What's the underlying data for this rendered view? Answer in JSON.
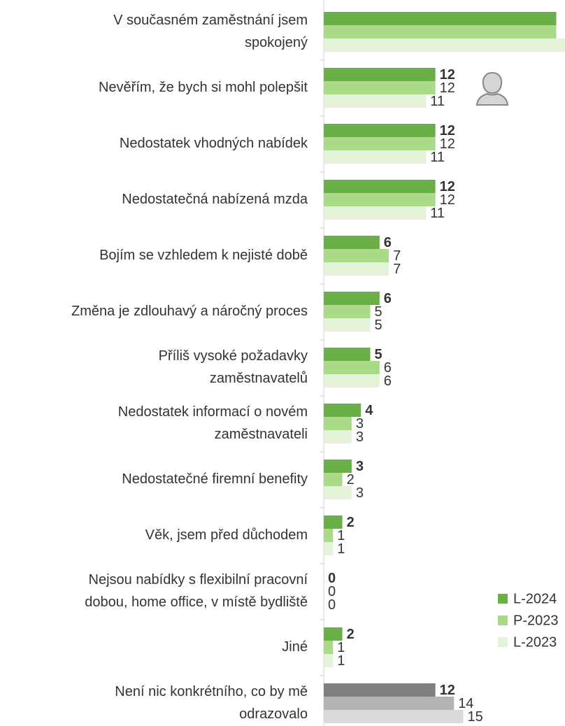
{
  "chart_data": {
    "type": "bar",
    "orientation": "horizontal",
    "categories": [
      [
        "V současném zaměstnání jsem",
        "spokojený"
      ],
      [
        "Nevěřím, že bych si mohl polepšit"
      ],
      [
        "Nedostatek vhodných nabídek"
      ],
      [
        "Nedostatečná nabízená mzda"
      ],
      [
        "Bojím se vzhledem k nejisté době"
      ],
      [
        "Změna je  zdlouhavý a náročný proces"
      ],
      [
        "Příliš vysoké požadavky",
        "zaměstnavatelů"
      ],
      [
        "Nedostatek informací o novém",
        "zaměstnavateli"
      ],
      [
        "Nedostatečné firemní benefity"
      ],
      [
        "Věk, jsem před důchodem"
      ],
      [
        "Nejsou nabídky s flexibilní pracovní",
        "dobou, home office, v místě bydliště"
      ],
      [
        "Jiné"
      ],
      [
        "Není nic konkrétního, co by mě",
        "odrazovalo"
      ]
    ],
    "series": [
      {
        "name": "L-2024",
        "color": "#6aaf45",
        "values": [
          25,
          12,
          12,
          12,
          6,
          6,
          5,
          4,
          3,
          2,
          0,
          2,
          12
        ],
        "value_labels": [
          null,
          "12",
          "12",
          "12",
          "6",
          "6",
          "5",
          "4",
          "3",
          "2",
          "0",
          "2",
          "12"
        ]
      },
      {
        "name": "P-2023",
        "color": "#a8da88",
        "values": [
          25,
          12,
          12,
          12,
          7,
          5,
          6,
          3,
          2,
          1,
          0,
          1,
          14
        ],
        "value_labels": [
          null,
          "12",
          "12",
          "12",
          "7",
          "5",
          "6",
          "3",
          "2",
          "1",
          "0",
          "1",
          "14"
        ]
      },
      {
        "name": "L-2023",
        "color": "#e3f2d8",
        "values": [
          26,
          11,
          11,
          11,
          7,
          5,
          6,
          3,
          3,
          1,
          0,
          1,
          15
        ],
        "value_labels": [
          null,
          "11",
          "11",
          "11",
          "7",
          "5",
          "6",
          "3",
          "3",
          "1",
          "0",
          "1",
          "15"
        ]
      }
    ],
    "neutral_colors": [
      "#7f7f7f",
      "#b3b3b3",
      "#dadada"
    ],
    "legend": "bottom-right"
  }
}
